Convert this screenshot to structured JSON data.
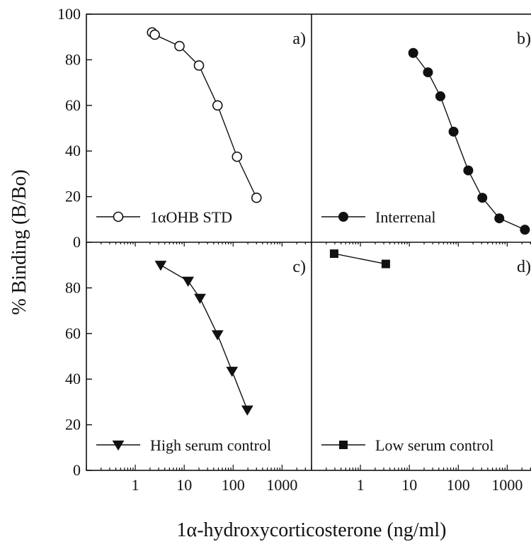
{
  "chart_data": {
    "type": "scatter",
    "layout": "2x2 panels, shared axes",
    "xlabel": "1α-hydroxycorticosterone (ng/ml)",
    "ylabel": "% Binding (B/Bo)",
    "x_scale": "log",
    "xlim": [
      0.1,
      4000
    ],
    "x_ticks": [
      1,
      10,
      100,
      1000
    ],
    "x_tick_labels": [
      "1",
      "10",
      "100",
      "1000"
    ],
    "y_top_ticks": [
      0,
      20,
      40,
      60,
      80,
      100
    ],
    "y_top_tick_labels": [
      "0",
      "20",
      "40",
      "60",
      "80",
      "100"
    ],
    "y_bottom_ticks": [
      0,
      20,
      40,
      60,
      80
    ],
    "y_bottom_tick_labels": [
      "0",
      "20",
      "40",
      "60",
      "80"
    ],
    "ylim_top": [
      0,
      100
    ],
    "ylim_bottom": [
      0,
      100
    ],
    "grid": false,
    "panels": [
      {
        "id": "a",
        "letter": "a)",
        "position": "top-left",
        "legend_position": "bottom-left",
        "series": [
          {
            "name": "1αOHB STD",
            "marker": "open-circle",
            "x": [
              2.2,
              2.5,
              8,
              20,
              48,
              120,
              300
            ],
            "y": [
              92,
              91,
              86,
              77.5,
              60,
              37.5,
              19.5
            ]
          }
        ]
      },
      {
        "id": "b",
        "letter": "b)",
        "position": "top-right",
        "legend_position": "bottom-left",
        "series": [
          {
            "name": "Interrenal",
            "marker": "filled-circle",
            "x": [
              12,
              24,
              43,
              80,
              160,
              310,
              690,
              2300
            ],
            "y": [
              83,
              74.5,
              64,
              48.5,
              31.5,
              19.5,
              10.5,
              5.5
            ]
          }
        ]
      },
      {
        "id": "c",
        "letter": "c)",
        "position": "bottom-left",
        "legend_position": "bottom-left",
        "series": [
          {
            "name": "High serum control",
            "marker": "filled-triangle-down",
            "x": [
              3.3,
              12,
              21,
              48,
              95,
              195
            ],
            "y": [
              90,
              83,
              75.5,
              59.5,
              43.5,
              26.5
            ]
          }
        ]
      },
      {
        "id": "d",
        "letter": "d)",
        "position": "bottom-right",
        "legend_position": "bottom-left",
        "series": [
          {
            "name": "Low serum control",
            "marker": "filled-square",
            "x": [
              0.29,
              3.3
            ],
            "y": [
              95,
              90.5
            ]
          }
        ]
      }
    ]
  }
}
